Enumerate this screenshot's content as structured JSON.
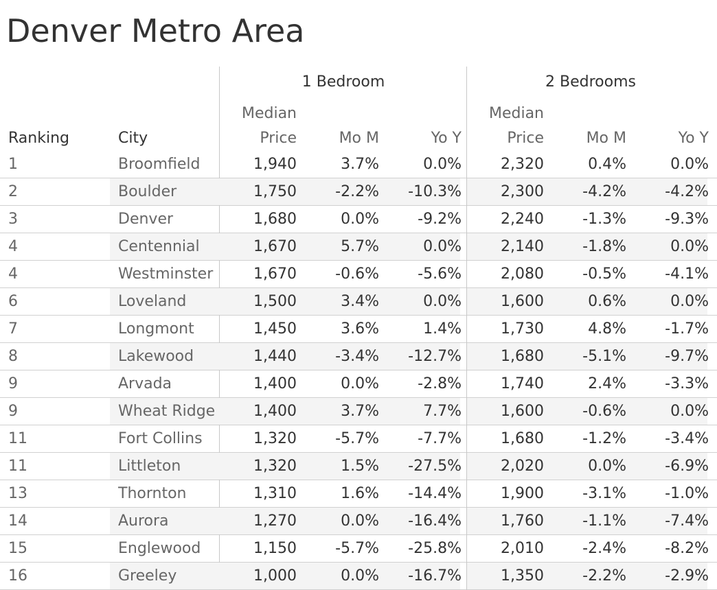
{
  "title": "Denver Metro Area",
  "chart_data": {
    "type": "table",
    "title": "Denver Metro Area",
    "groups": [
      "1 Bedroom",
      "2 Bedrooms"
    ],
    "columns": {
      "ranking": "Ranking",
      "city": "City",
      "median_top": "Median",
      "median_bottom": "Price",
      "mom": "Mo M",
      "yoy": "Yo Y"
    },
    "rows": [
      {
        "rank": "1",
        "city": "Broomfield",
        "b1_price": "1,940",
        "b1_mom": "3.7%",
        "b1_yoy": "0.0%",
        "b2_price": "2,320",
        "b2_mom": "0.4%",
        "b2_yoy": "0.0%"
      },
      {
        "rank": "2",
        "city": "Boulder",
        "b1_price": "1,750",
        "b1_mom": "-2.2%",
        "b1_yoy": "-10.3%",
        "b2_price": "2,300",
        "b2_mom": "-4.2%",
        "b2_yoy": "-4.2%"
      },
      {
        "rank": "3",
        "city": "Denver",
        "b1_price": "1,680",
        "b1_mom": "0.0%",
        "b1_yoy": "-9.2%",
        "b2_price": "2,240",
        "b2_mom": "-1.3%",
        "b2_yoy": "-9.3%"
      },
      {
        "rank": "4",
        "city": "Centennial",
        "b1_price": "1,670",
        "b1_mom": "5.7%",
        "b1_yoy": "0.0%",
        "b2_price": "2,140",
        "b2_mom": "-1.8%",
        "b2_yoy": "0.0%"
      },
      {
        "rank": "4",
        "city": "Westminster",
        "b1_price": "1,670",
        "b1_mom": "-0.6%",
        "b1_yoy": "-5.6%",
        "b2_price": "2,080",
        "b2_mom": "-0.5%",
        "b2_yoy": "-4.1%"
      },
      {
        "rank": "6",
        "city": "Loveland",
        "b1_price": "1,500",
        "b1_mom": "3.4%",
        "b1_yoy": "0.0%",
        "b2_price": "1,600",
        "b2_mom": "0.6%",
        "b2_yoy": "0.0%"
      },
      {
        "rank": "7",
        "city": "Longmont",
        "b1_price": "1,450",
        "b1_mom": "3.6%",
        "b1_yoy": "1.4%",
        "b2_price": "1,730",
        "b2_mom": "4.8%",
        "b2_yoy": "-1.7%"
      },
      {
        "rank": "8",
        "city": "Lakewood",
        "b1_price": "1,440",
        "b1_mom": "-3.4%",
        "b1_yoy": "-12.7%",
        "b2_price": "1,680",
        "b2_mom": "-5.1%",
        "b2_yoy": "-9.7%"
      },
      {
        "rank": "9",
        "city": "Arvada",
        "b1_price": "1,400",
        "b1_mom": "0.0%",
        "b1_yoy": "-2.8%",
        "b2_price": "1,740",
        "b2_mom": "2.4%",
        "b2_yoy": "-3.3%"
      },
      {
        "rank": "9",
        "city": "Wheat Ridge",
        "b1_price": "1,400",
        "b1_mom": "3.7%",
        "b1_yoy": "7.7%",
        "b2_price": "1,600",
        "b2_mom": "-0.6%",
        "b2_yoy": "0.0%"
      },
      {
        "rank": "11",
        "city": "Fort Collins",
        "b1_price": "1,320",
        "b1_mom": "-5.7%",
        "b1_yoy": "-7.7%",
        "b2_price": "1,680",
        "b2_mom": "-1.2%",
        "b2_yoy": "-3.4%"
      },
      {
        "rank": "11",
        "city": "Littleton",
        "b1_price": "1,320",
        "b1_mom": "1.5%",
        "b1_yoy": "-27.5%",
        "b2_price": "2,020",
        "b2_mom": "0.0%",
        "b2_yoy": "-6.9%"
      },
      {
        "rank": "13",
        "city": "Thornton",
        "b1_price": "1,310",
        "b1_mom": "1.6%",
        "b1_yoy": "-14.4%",
        "b2_price": "1,900",
        "b2_mom": "-3.1%",
        "b2_yoy": "-1.0%"
      },
      {
        "rank": "14",
        "city": "Aurora",
        "b1_price": "1,270",
        "b1_mom": "0.0%",
        "b1_yoy": "-16.4%",
        "b2_price": "1,760",
        "b2_mom": "-1.1%",
        "b2_yoy": "-7.4%"
      },
      {
        "rank": "15",
        "city": "Englewood",
        "b1_price": "1,150",
        "b1_mom": "-5.7%",
        "b1_yoy": "-25.8%",
        "b2_price": "2,010",
        "b2_mom": "-2.4%",
        "b2_yoy": "-8.2%"
      },
      {
        "rank": "16",
        "city": "Greeley",
        "b1_price": "1,000",
        "b1_mom": "0.0%",
        "b1_yoy": "-16.7%",
        "b2_price": "1,350",
        "b2_mom": "-2.2%",
        "b2_yoy": "-2.9%"
      }
    ]
  }
}
